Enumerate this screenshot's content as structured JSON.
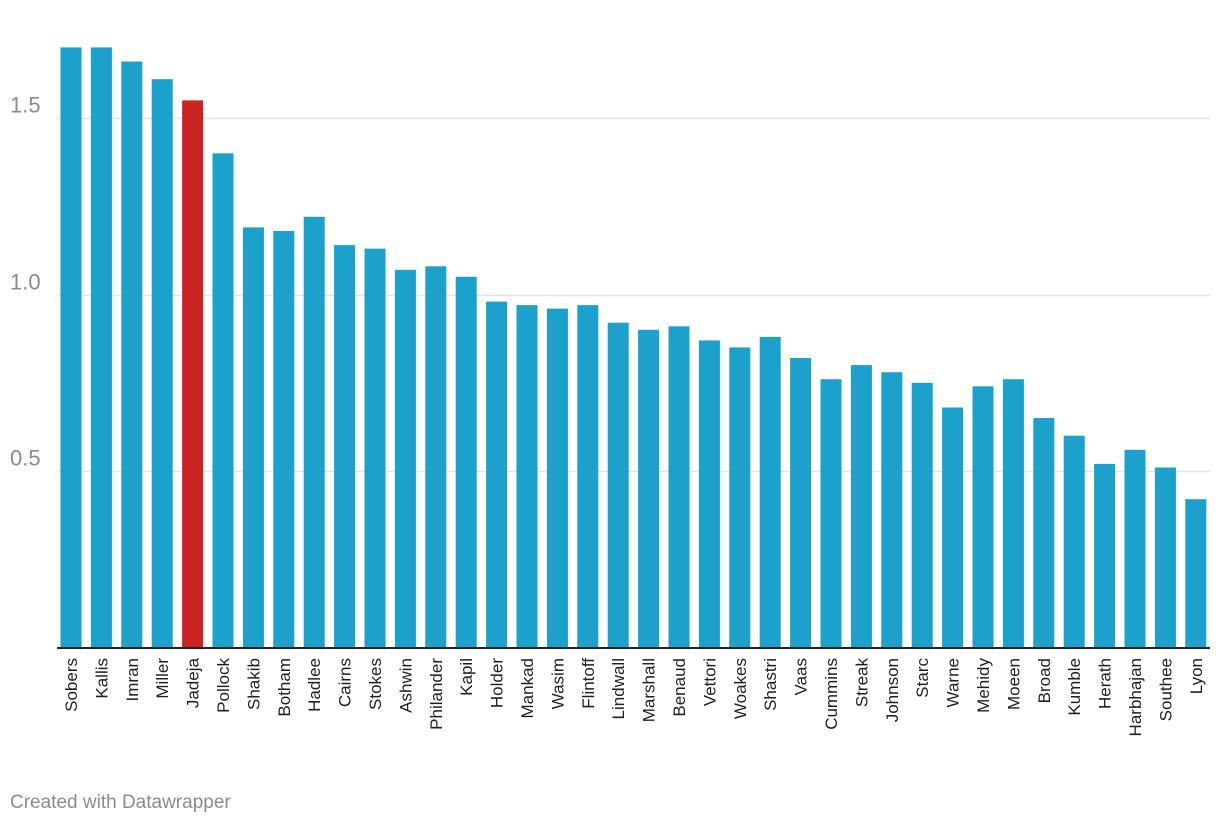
{
  "chart_data": {
    "type": "bar",
    "title": "",
    "xlabel": "",
    "ylabel": "",
    "ylim": [
      0,
      1.7
    ],
    "yticks": [
      0.5,
      1.0,
      1.5
    ],
    "ytick_labels": [
      "0.5",
      "1.0",
      "1.5"
    ],
    "grid": true,
    "legend": "none",
    "categories": [
      "Sobers",
      "Kallis",
      "Imran",
      "Miller",
      "Jadeja",
      "Pollock",
      "Shakib",
      "Botham",
      "Hadlee",
      "Cairns",
      "Stokes",
      "Ashwin",
      "Philander",
      "Kapil",
      "Holder",
      "Mankad",
      "Wasim",
      "Flintoff",
      "Lindwall",
      "Marshall",
      "Benaud",
      "Vettori",
      "Woakes",
      "Shastri",
      "Vaas",
      "Cummins",
      "Streak",
      "Johnson",
      "Starc",
      "Warne",
      "Mehidy",
      "Moeen",
      "Broad",
      "Kumble",
      "Herath",
      "Harbhajan",
      "Southee",
      "Lyon"
    ],
    "values": [
      1.7,
      1.7,
      1.66,
      1.61,
      1.55,
      1.4,
      1.19,
      1.18,
      1.22,
      1.14,
      1.13,
      1.07,
      1.08,
      1.05,
      0.98,
      0.97,
      0.96,
      0.97,
      0.92,
      0.9,
      0.91,
      0.87,
      0.85,
      0.88,
      0.82,
      0.76,
      0.8,
      0.78,
      0.75,
      0.68,
      0.74,
      0.76,
      0.65,
      0.6,
      0.52,
      0.56,
      0.51,
      0.42
    ],
    "highlight": "Jadeja"
  },
  "colors": {
    "bar": "#1ba1cc",
    "highlight": "#cc2222",
    "grid": "#e3e3e3",
    "baseline": "#222222"
  },
  "footer": {
    "credit": "Created with Datawrapper"
  }
}
